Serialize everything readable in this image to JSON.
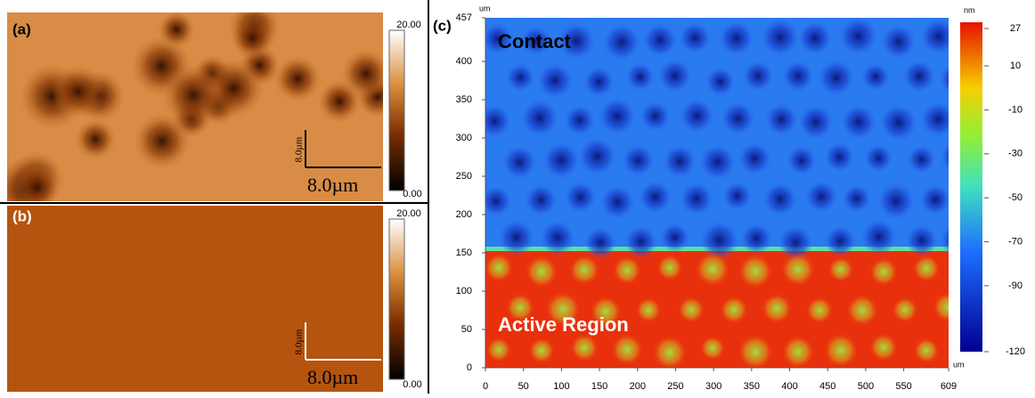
{
  "panels": [
    {
      "label": "(a)",
      "scale_bar": "8.0µm",
      "colorbar": {
        "max": "20.00",
        "min": "0.00"
      }
    },
    {
      "label": "(b)",
      "scale_bar": "8.0µm",
      "colorbar": {
        "max": "20.00",
        "min": "0.00"
      }
    },
    {
      "label": "(c)",
      "region_top": "Contact",
      "region_bottom": "Active Region",
      "x_unit": "um",
      "y_unit": "um",
      "colorbar_unit": "nm",
      "xticks": [
        0,
        50,
        100,
        150,
        200,
        250,
        300,
        350,
        400,
        450,
        500,
        550,
        609
      ],
      "yticks": [
        0,
        50,
        100,
        150,
        200,
        250,
        300,
        350,
        400,
        457
      ],
      "colorbar_ticks": [
        27,
        10,
        -10,
        -30,
        -50,
        -70,
        -90,
        -120
      ]
    }
  ]
}
